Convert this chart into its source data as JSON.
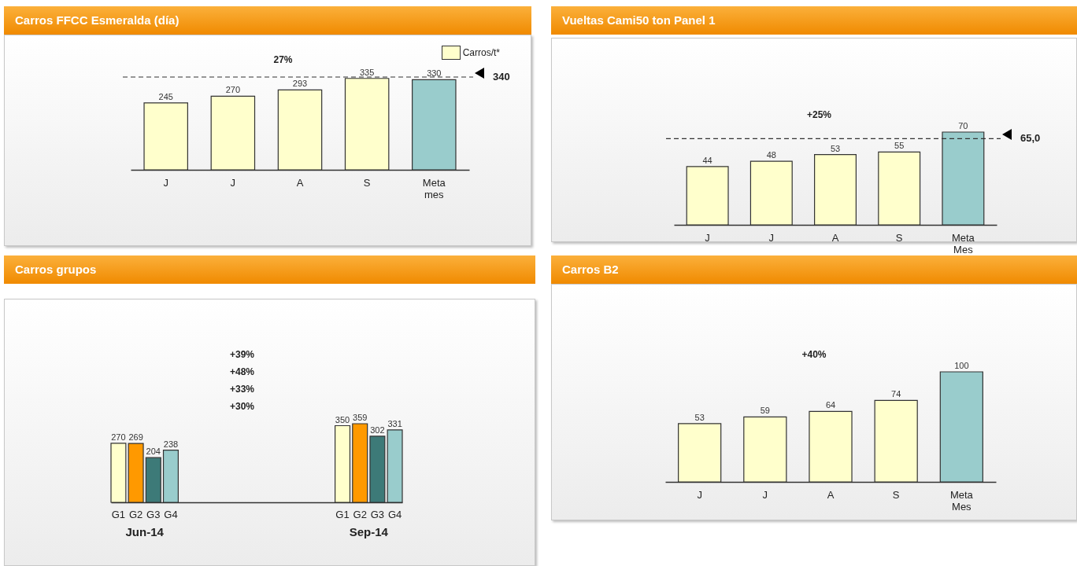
{
  "chart_data": [
    {
      "type": "bar",
      "title": "Carros FFCC Esmeralda (día)",
      "categories": [
        "J",
        "J",
        "A",
        "S",
        "Meta mes"
      ],
      "series": [
        {
          "name": "Carros/t*",
          "color": "#ffffcc",
          "values": [
            245,
            270,
            293,
            335,
            null
          ]
        },
        {
          "color": "#99cccc",
          "values": [
            null,
            null,
            null,
            null,
            330
          ]
        }
      ],
      "stacked": true,
      "data_labels": true,
      "legend": "top right",
      "ref_lines": [
        {
          "axis": "y",
          "value": 340,
          "label": "340",
          "line_style": "dashed"
        }
      ],
      "annotations": [
        "27%"
      ]
    },
    {
      "type": "bar",
      "title": "Vueltas Cami50  ton Panel 1",
      "categories": [
        "J",
        "J",
        "A",
        "S",
        "Meta Mes"
      ],
      "values": [
        44,
        48,
        53,
        55,
        70
      ],
      "colors": [
        "#ffffcc",
        "#ffffcc",
        "#ffffcc",
        "#ffffcc",
        "#99cccc"
      ],
      "data_labels": true,
      "ref_lines": [
        {
          "axis": "y",
          "value": 65,
          "label": "65,0",
          "line_style": "dashed"
        }
      ],
      "annotations": [
        "+25%"
      ]
    },
    {
      "type": "bar",
      "title": "Carros grupos",
      "categories": [
        "Jun-14",
        "Sep-14"
      ],
      "series": [
        {
          "name": "G1",
          "color": "#ffffcc",
          "values": [
            270,
            350
          ]
        },
        {
          "name": "G2",
          "color": "#ff9900",
          "values": [
            269,
            359
          ]
        },
        {
          "name": "G3",
          "color": "#3d7a78",
          "values": [
            204,
            302
          ]
        },
        {
          "name": "G4",
          "color": "#99cccc",
          "values": [
            238,
            331
          ]
        }
      ],
      "data_labels": true,
      "annotations": [
        "+39%",
        "+48%",
        "+33%",
        "+30%"
      ]
    },
    {
      "type": "bar",
      "title": "Carros B2",
      "categories": [
        "J",
        "J",
        "A",
        "S",
        "Meta Mes"
      ],
      "values": [
        53,
        59,
        64,
        74,
        100
      ],
      "colors": [
        "#ffffcc",
        "#ffffcc",
        "#ffffcc",
        "#ffffcc",
        "#99cccc"
      ],
      "data_labels": true,
      "annotations": [
        "+40%"
      ]
    }
  ]
}
